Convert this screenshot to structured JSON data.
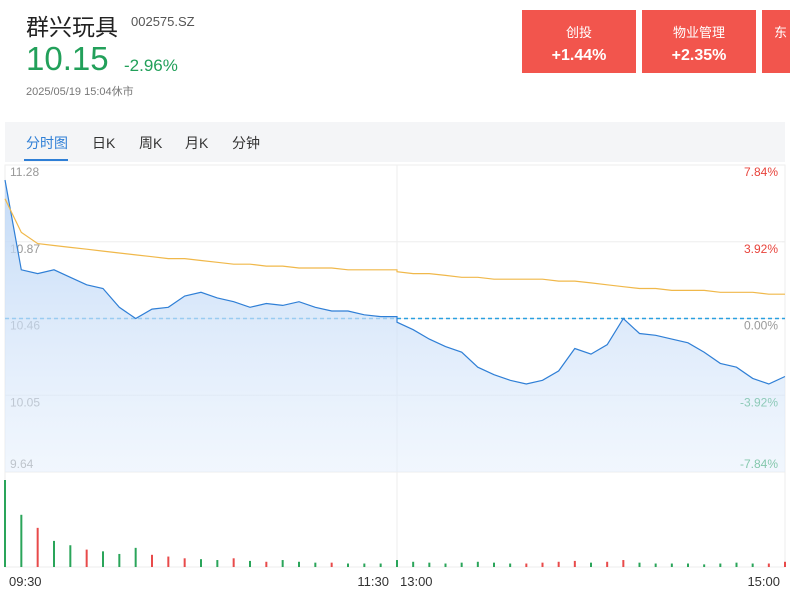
{
  "header": {
    "name": "群兴玩具",
    "code": "002575.SZ",
    "price": "10.15",
    "change": "-2.96%",
    "time": "2025/05/19 15:04休市"
  },
  "sectors": [
    {
      "label": "创投",
      "change": "+1.44%"
    },
    {
      "label": "物业管理",
      "change": "+2.35%"
    },
    {
      "label": "东"
    }
  ],
  "tabs": [
    "分时图",
    "日K",
    "周K",
    "月K",
    "分钟"
  ],
  "chart_data": {
    "type": "line",
    "categories": [
      "09:30",
      null,
      null,
      null,
      null,
      null,
      null,
      null,
      null,
      null,
      null,
      null,
      null,
      null,
      null,
      null,
      null,
      null,
      null,
      null,
      null,
      null,
      null,
      null,
      "11:30",
      "13:00",
      null,
      null,
      null,
      null,
      null,
      null,
      null,
      null,
      null,
      null,
      null,
      null,
      null,
      null,
      null,
      null,
      null,
      null,
      null,
      null,
      null,
      null,
      null,
      "15:00"
    ],
    "series": [
      {
        "color": "#2f7fd6",
        "values": [
          11.2,
          10.72,
          10.7,
          10.72,
          10.68,
          10.64,
          10.62,
          10.52,
          10.46,
          10.51,
          10.52,
          10.58,
          10.6,
          10.57,
          10.55,
          10.52,
          10.54,
          10.53,
          10.55,
          10.52,
          10.5,
          10.5,
          10.48,
          10.47,
          10.47,
          10.44,
          10.4,
          10.35,
          10.31,
          10.28,
          10.2,
          10.16,
          10.13,
          10.11,
          10.13,
          10.18,
          10.3,
          10.27,
          10.32,
          10.46,
          10.38,
          10.37,
          10.35,
          10.33,
          10.28,
          10.22,
          10.2,
          10.14,
          10.11,
          10.15
        ]
      },
      {
        "color": "#f0b84a",
        "values": [
          11.1,
          10.92,
          10.86,
          10.85,
          10.84,
          10.83,
          10.82,
          10.81,
          10.8,
          10.79,
          10.78,
          10.78,
          10.77,
          10.76,
          10.75,
          10.75,
          10.74,
          10.74,
          10.73,
          10.73,
          10.73,
          10.72,
          10.72,
          10.72,
          10.72,
          10.71,
          10.7,
          10.7,
          10.69,
          10.68,
          10.68,
          10.67,
          10.67,
          10.67,
          10.67,
          10.66,
          10.66,
          10.65,
          10.64,
          10.63,
          10.62,
          10.62,
          10.61,
          10.61,
          10.61,
          10.6,
          10.6,
          10.6,
          10.59,
          10.59
        ]
      }
    ],
    "volume": {
      "values": [
        100,
        60,
        45,
        30,
        25,
        20,
        18,
        15,
        22,
        14,
        12,
        10,
        9,
        8,
        10,
        7,
        6,
        8,
        6,
        5,
        5,
        4,
        4,
        4,
        5,
        8,
        6,
        5,
        4,
        5,
        6,
        5,
        4,
        4,
        5,
        6,
        7,
        5,
        6,
        8,
        5,
        4,
        4,
        4,
        3,
        4,
        5,
        4,
        4,
        6
      ],
      "colors": [
        "#2aa55a",
        "#2aa55a",
        "#e84a4a",
        "#2aa55a",
        "#2aa55a",
        "#e84a4a",
        "#2aa55a",
        "#2aa55a",
        "#2aa55a",
        "#e84a4a",
        "#e84a4a",
        "#e84a4a",
        "#2aa55a",
        "#2aa55a",
        "#e84a4a",
        "#2aa55a",
        "#e84a4a",
        "#2aa55a",
        "#2aa55a",
        "#2aa55a",
        "#e84a4a",
        "#2aa55a",
        "#2aa55a",
        "#2aa55a",
        "#e84a4a",
        "#2aa55a",
        "#2aa55a",
        "#2aa55a",
        "#2aa55a",
        "#2aa55a",
        "#2aa55a",
        "#2aa55a",
        "#2aa55a",
        "#e84a4a",
        "#e84a4a",
        "#e84a4a",
        "#e84a4a",
        "#2aa55a",
        "#e84a4a",
        "#e84a4a",
        "#2aa55a",
        "#2aa55a",
        "#2aa55a",
        "#2aa55a",
        "#2aa55a",
        "#2aa55a",
        "#2aa55a",
        "#2aa55a",
        "#e84a4a",
        "#e84a4a"
      ]
    },
    "ylim": [
      9.64,
      11.28
    ],
    "yticks": [
      11.28,
      10.87,
      10.46,
      10.05,
      9.64
    ],
    "y2lim": [
      -7.84,
      7.84
    ],
    "y2ticks": [
      {
        "value": 7.84,
        "label": "7.84%"
      },
      {
        "value": 3.92,
        "label": "3.92%"
      },
      {
        "value": 0,
        "label": "0.00%"
      },
      {
        "value": -3.92,
        "label": "-3.92%"
      },
      {
        "value": -7.84,
        "label": "-7.84%"
      }
    ],
    "reference": 10.46,
    "grid": true
  }
}
